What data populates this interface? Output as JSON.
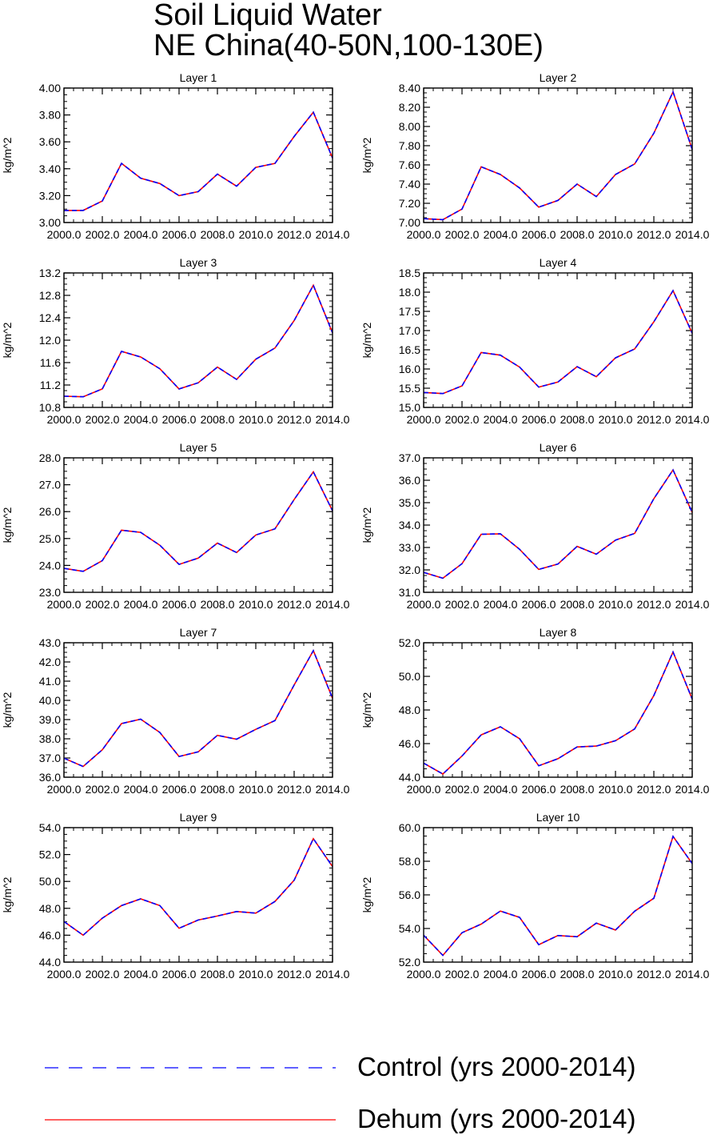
{
  "figure": {
    "title_lines": [
      "Soil Liquid Water",
      "NE China(40-50N,100-130E)"
    ]
  },
  "legend": [
    {
      "label": "Control (yrs 2000-2014)",
      "color": "#0000ff",
      "dash": true
    },
    {
      "label": "Dehum (yrs 2000-2014)",
      "color": "#ff0000",
      "dash": false
    }
  ],
  "chart_data": [
    {
      "type": "line",
      "title": "Layer 1",
      "ylabel": "kg/m^2",
      "x": [
        2000,
        2001,
        2002,
        2003,
        2004,
        2005,
        2006,
        2007,
        2008,
        2009,
        2010,
        2011,
        2012,
        2013,
        2014
      ],
      "xticks": [
        "2000.0",
        "2002.0",
        "2004.0",
        "2006.0",
        "2008.0",
        "2010.0",
        "2012.0",
        "2014.0"
      ],
      "yticks": [
        "3.00",
        "3.20",
        "3.40",
        "3.60",
        "3.80",
        "4.00"
      ],
      "ylim": [
        3.0,
        4.0
      ],
      "series": [
        {
          "name": "Control (yrs 2000-2014)",
          "values": [
            3.09,
            3.09,
            3.16,
            3.44,
            3.33,
            3.29,
            3.2,
            3.23,
            3.36,
            3.27,
            3.41,
            3.44,
            3.64,
            3.82,
            3.48
          ]
        },
        {
          "name": "Dehum (yrs 2000-2014)",
          "values": [
            3.09,
            3.09,
            3.16,
            3.44,
            3.33,
            3.29,
            3.2,
            3.23,
            3.36,
            3.27,
            3.41,
            3.44,
            3.64,
            3.82,
            3.48
          ]
        }
      ]
    },
    {
      "type": "line",
      "title": "Layer 2",
      "ylabel": "kg/m^2",
      "x": [
        2000,
        2001,
        2002,
        2003,
        2004,
        2005,
        2006,
        2007,
        2008,
        2009,
        2010,
        2011,
        2012,
        2013,
        2014
      ],
      "xticks": [
        "2000.0",
        "2002.0",
        "2004.0",
        "2006.0",
        "2008.0",
        "2010.0",
        "2012.0",
        "2014.0"
      ],
      "yticks": [
        "7.00",
        "7.20",
        "7.40",
        "7.60",
        "7.80",
        "8.00",
        "8.20",
        "8.40"
      ],
      "ylim": [
        7.0,
        8.4
      ],
      "series": [
        {
          "name": "Control (yrs 2000-2014)",
          "values": [
            7.04,
            7.03,
            7.14,
            7.58,
            7.5,
            7.36,
            7.16,
            7.23,
            7.4,
            7.27,
            7.5,
            7.61,
            7.93,
            8.36,
            7.76
          ]
        },
        {
          "name": "Dehum (yrs 2000-2014)",
          "values": [
            7.04,
            7.03,
            7.14,
            7.58,
            7.5,
            7.36,
            7.16,
            7.23,
            7.4,
            7.27,
            7.5,
            7.61,
            7.93,
            8.36,
            7.76
          ]
        }
      ]
    },
    {
      "type": "line",
      "title": "Layer 3",
      "ylabel": "kg/m^2",
      "x": [
        2000,
        2001,
        2002,
        2003,
        2004,
        2005,
        2006,
        2007,
        2008,
        2009,
        2010,
        2011,
        2012,
        2013,
        2014
      ],
      "xticks": [
        "2000.0",
        "2002.0",
        "2004.0",
        "2006.0",
        "2008.0",
        "2010.0",
        "2012.0",
        "2014.0"
      ],
      "yticks": [
        "10.8",
        "11.2",
        "11.6",
        "12.0",
        "12.4",
        "12.8",
        "13.2"
      ],
      "ylim": [
        10.8,
        13.2
      ],
      "series": [
        {
          "name": "Control (yrs 2000-2014)",
          "values": [
            11.0,
            10.99,
            11.13,
            11.8,
            11.7,
            11.49,
            11.13,
            11.24,
            11.52,
            11.3,
            11.66,
            11.86,
            12.35,
            12.98,
            12.13
          ]
        },
        {
          "name": "Dehum (yrs 2000-2014)",
          "values": [
            11.0,
            10.99,
            11.13,
            11.8,
            11.7,
            11.49,
            11.13,
            11.24,
            11.52,
            11.3,
            11.66,
            11.86,
            12.35,
            12.98,
            12.13
          ]
        }
      ]
    },
    {
      "type": "line",
      "title": "Layer 4",
      "ylabel": "kg/m^2",
      "x": [
        2000,
        2001,
        2002,
        2003,
        2004,
        2005,
        2006,
        2007,
        2008,
        2009,
        2010,
        2011,
        2012,
        2013,
        2014
      ],
      "xticks": [
        "2000.0",
        "2002.0",
        "2004.0",
        "2006.0",
        "2008.0",
        "2010.0",
        "2012.0",
        "2014.0"
      ],
      "yticks": [
        "15.0",
        "15.5",
        "16.0",
        "16.5",
        "17.0",
        "17.5",
        "18.0",
        "18.5"
      ],
      "ylim": [
        15.0,
        18.5
      ],
      "series": [
        {
          "name": "Control (yrs 2000-2014)",
          "values": [
            15.39,
            15.36,
            15.56,
            16.43,
            16.36,
            16.05,
            15.53,
            15.66,
            16.06,
            15.8,
            16.29,
            16.52,
            17.23,
            18.04,
            16.93
          ]
        },
        {
          "name": "Dehum (yrs 2000-2014)",
          "values": [
            15.39,
            15.36,
            15.56,
            16.43,
            16.36,
            16.05,
            15.53,
            15.66,
            16.06,
            15.8,
            16.29,
            16.52,
            17.23,
            18.04,
            16.93
          ]
        }
      ]
    },
    {
      "type": "line",
      "title": "Layer 5",
      "ylabel": "kg/m^2",
      "x": [
        2000,
        2001,
        2002,
        2003,
        2004,
        2005,
        2006,
        2007,
        2008,
        2009,
        2010,
        2011,
        2012,
        2013,
        2014
      ],
      "xticks": [
        "2000.0",
        "2002.0",
        "2004.0",
        "2006.0",
        "2008.0",
        "2010.0",
        "2012.0",
        "2014.0"
      ],
      "yticks": [
        "23.0",
        "24.0",
        "25.0",
        "26.0",
        "27.0",
        "28.0"
      ],
      "ylim": [
        23.0,
        28.0
      ],
      "series": [
        {
          "name": "Control (yrs 2000-2014)",
          "values": [
            23.89,
            23.78,
            24.18,
            25.31,
            25.23,
            24.75,
            24.04,
            24.27,
            24.83,
            24.48,
            25.13,
            25.36,
            26.45,
            27.48,
            26.03
          ]
        },
        {
          "name": "Dehum (yrs 2000-2014)",
          "values": [
            23.89,
            23.78,
            24.18,
            25.31,
            25.23,
            24.75,
            24.04,
            24.27,
            24.83,
            24.48,
            25.13,
            25.36,
            26.45,
            27.48,
            26.03
          ]
        }
      ]
    },
    {
      "type": "line",
      "title": "Layer 6",
      "ylabel": "kg/m^2",
      "x": [
        2000,
        2001,
        2002,
        2003,
        2004,
        2005,
        2006,
        2007,
        2008,
        2009,
        2010,
        2011,
        2012,
        2013,
        2014
      ],
      "xticks": [
        "2000.0",
        "2002.0",
        "2004.0",
        "2006.0",
        "2008.0",
        "2010.0",
        "2012.0",
        "2014.0"
      ],
      "yticks": [
        "31.0",
        "32.0",
        "33.0",
        "34.0",
        "35.0",
        "36.0",
        "37.0"
      ],
      "ylim": [
        31.0,
        37.0
      ],
      "series": [
        {
          "name": "Control (yrs 2000-2014)",
          "values": [
            31.89,
            31.63,
            32.28,
            33.59,
            33.61,
            32.92,
            32.02,
            32.26,
            33.05,
            32.7,
            33.33,
            33.63,
            35.18,
            36.46,
            34.56
          ]
        },
        {
          "name": "Dehum (yrs 2000-2014)",
          "values": [
            31.89,
            31.63,
            32.28,
            33.59,
            33.61,
            32.92,
            32.02,
            32.26,
            33.05,
            32.7,
            33.33,
            33.63,
            35.18,
            36.46,
            34.56
          ]
        }
      ]
    },
    {
      "type": "line",
      "title": "Layer 7",
      "ylabel": "kg/m^2",
      "x": [
        2000,
        2001,
        2002,
        2003,
        2004,
        2005,
        2006,
        2007,
        2008,
        2009,
        2010,
        2011,
        2012,
        2013,
        2014
      ],
      "xticks": [
        "2000.0",
        "2002.0",
        "2004.0",
        "2006.0",
        "2008.0",
        "2010.0",
        "2012.0",
        "2014.0"
      ],
      "yticks": [
        "36.0",
        "37.0",
        "38.0",
        "39.0",
        "40.0",
        "41.0",
        "42.0",
        "43.0"
      ],
      "ylim": [
        36.0,
        43.0
      ],
      "series": [
        {
          "name": "Control (yrs 2000-2014)",
          "values": [
            36.99,
            36.56,
            37.43,
            38.79,
            39.02,
            38.33,
            37.08,
            37.32,
            38.18,
            37.98,
            38.49,
            38.95,
            40.8,
            42.59,
            40.11
          ]
        },
        {
          "name": "Dehum (yrs 2000-2014)",
          "values": [
            36.99,
            36.56,
            37.43,
            38.79,
            39.02,
            38.33,
            37.08,
            37.32,
            38.18,
            37.98,
            38.49,
            38.95,
            40.8,
            42.59,
            40.11
          ]
        }
      ]
    },
    {
      "type": "line",
      "title": "Layer 8",
      "ylabel": "kg/m^2",
      "x": [
        2000,
        2001,
        2002,
        2003,
        2004,
        2005,
        2006,
        2007,
        2008,
        2009,
        2010,
        2011,
        2012,
        2013,
        2014
      ],
      "xticks": [
        "2000.0",
        "2002.0",
        "2004.0",
        "2006.0",
        "2008.0",
        "2010.0",
        "2012.0",
        "2014.0"
      ],
      "yticks": [
        "44.0",
        "46.0",
        "48.0",
        "50.0",
        "52.0"
      ],
      "ylim": [
        44.0,
        52.0
      ],
      "series": [
        {
          "name": "Control (yrs 2000-2014)",
          "values": [
            44.84,
            44.19,
            45.26,
            46.52,
            47.0,
            46.29,
            44.68,
            45.1,
            45.8,
            45.85,
            46.17,
            46.87,
            48.86,
            51.45,
            48.65
          ]
        },
        {
          "name": "Dehum (yrs 2000-2014)",
          "values": [
            44.84,
            44.19,
            45.26,
            46.52,
            47.0,
            46.29,
            44.68,
            45.1,
            45.8,
            45.85,
            46.17,
            46.87,
            48.86,
            51.45,
            48.65
          ]
        }
      ]
    },
    {
      "type": "line",
      "title": "Layer 9",
      "ylabel": "kg/m^2",
      "x": [
        2000,
        2001,
        2002,
        2003,
        2004,
        2005,
        2006,
        2007,
        2008,
        2009,
        2010,
        2011,
        2012,
        2013,
        2014
      ],
      "xticks": [
        "2000.0",
        "2002.0",
        "2004.0",
        "2006.0",
        "2008.0",
        "2010.0",
        "2012.0",
        "2014.0"
      ],
      "yticks": [
        "44.0",
        "46.0",
        "48.0",
        "50.0",
        "52.0",
        "54.0"
      ],
      "ylim": [
        44.0,
        54.0
      ],
      "series": [
        {
          "name": "Control (yrs 2000-2014)",
          "values": [
            47.02,
            46.0,
            47.27,
            48.2,
            48.7,
            48.2,
            46.52,
            47.13,
            47.43,
            47.76,
            47.64,
            48.51,
            50.09,
            53.18,
            51.1
          ]
        },
        {
          "name": "Dehum (yrs 2000-2014)",
          "values": [
            47.02,
            46.0,
            47.27,
            48.2,
            48.7,
            48.2,
            46.52,
            47.13,
            47.43,
            47.76,
            47.64,
            48.51,
            50.09,
            53.18,
            51.1
          ]
        }
      ]
    },
    {
      "type": "line",
      "title": "Layer 10",
      "ylabel": "kg/m^2",
      "x": [
        2000,
        2001,
        2002,
        2003,
        2004,
        2005,
        2006,
        2007,
        2008,
        2009,
        2010,
        2011,
        2012,
        2013,
        2014
      ],
      "xticks": [
        "2000.0",
        "2002.0",
        "2004.0",
        "2006.0",
        "2008.0",
        "2010.0",
        "2012.0",
        "2014.0"
      ],
      "yticks": [
        "52.0",
        "54.0",
        "56.0",
        "58.0",
        "60.0"
      ],
      "ylim": [
        52.0,
        60.0
      ],
      "series": [
        {
          "name": "Control (yrs 2000-2014)",
          "values": [
            53.6,
            52.4,
            53.75,
            54.26,
            55.04,
            54.66,
            53.04,
            53.58,
            53.51,
            54.32,
            53.91,
            55.03,
            55.8,
            59.48,
            57.86
          ]
        },
        {
          "name": "Dehum (yrs 2000-2014)",
          "values": [
            53.6,
            52.4,
            53.75,
            54.26,
            55.04,
            54.66,
            53.04,
            53.58,
            53.51,
            54.32,
            53.91,
            55.03,
            55.8,
            59.48,
            57.86
          ]
        }
      ]
    }
  ]
}
